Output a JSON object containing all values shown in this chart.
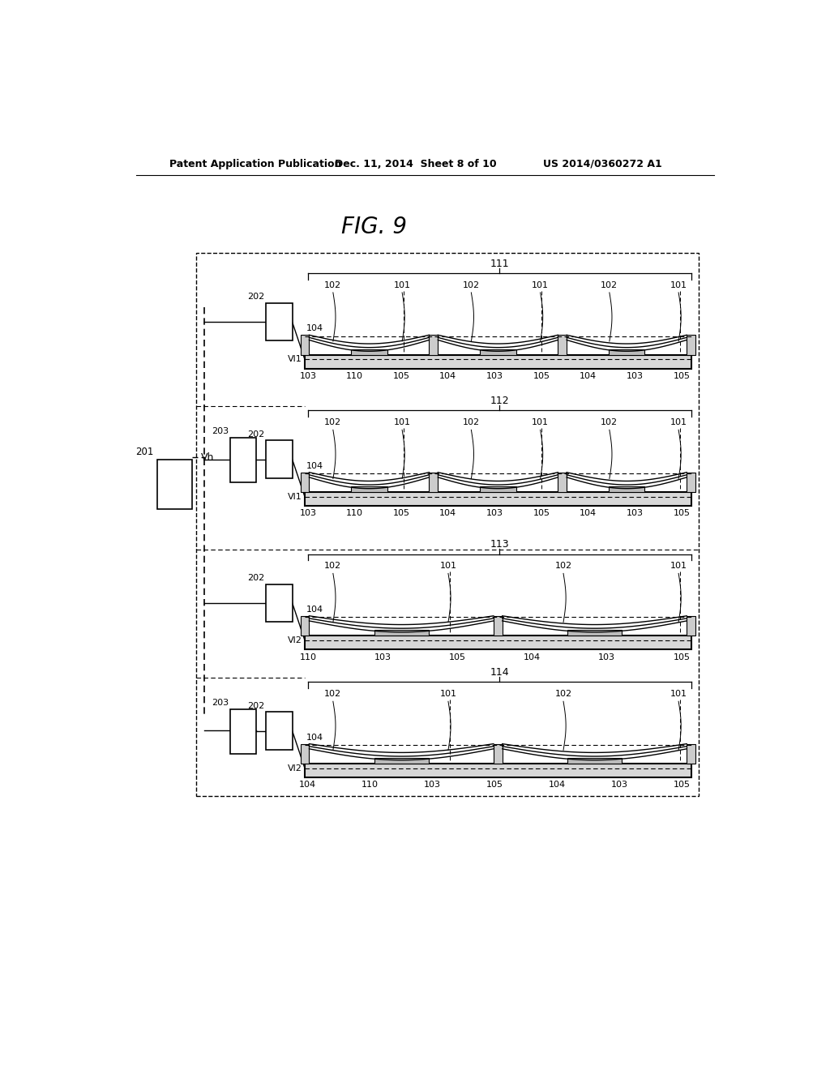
{
  "bg_color": "#ffffff",
  "header_left": "Patent Application Publication",
  "header_mid": "Dec. 11, 2014  Sheet 8 of 10",
  "header_right": "US 2014/0360272 A1",
  "fig_title": "FIG. 9",
  "line_color": "#000000",
  "gray_light": "#cccccc",
  "gray_mid": "#999999",
  "sections": [
    {
      "label": "111",
      "vi_label": "Vl1",
      "n_peaks": 3,
      "bot_labels": [
        "103",
        "110",
        "105",
        "104",
        "103",
        "105",
        "104",
        "103",
        "105"
      ],
      "top_labels": [
        "102",
        "101",
        "102",
        "101",
        "102",
        "101"
      ],
      "has_203": false
    },
    {
      "label": "112",
      "vi_label": "Vl1",
      "n_peaks": 3,
      "bot_labels": [
        "103",
        "110",
        "105",
        "104",
        "103",
        "105",
        "104",
        "103",
        "105"
      ],
      "top_labels": [
        "102",
        "101",
        "102",
        "101",
        "102",
        "101"
      ],
      "has_203": true
    },
    {
      "label": "113",
      "vi_label": "Vl2",
      "n_peaks": 2,
      "bot_labels": [
        "110",
        "103",
        "105",
        "104",
        "103",
        "105"
      ],
      "top_labels": [
        "102",
        "101",
        "102",
        "101"
      ],
      "has_203": false
    },
    {
      "label": "114",
      "vi_label": "Vl2",
      "n_peaks": 2,
      "bot_labels": [
        "104",
        "110",
        "103",
        "105",
        "104",
        "103",
        "105"
      ],
      "top_labels": [
        "102",
        "101",
        "102",
        "101"
      ],
      "has_203": true
    }
  ]
}
